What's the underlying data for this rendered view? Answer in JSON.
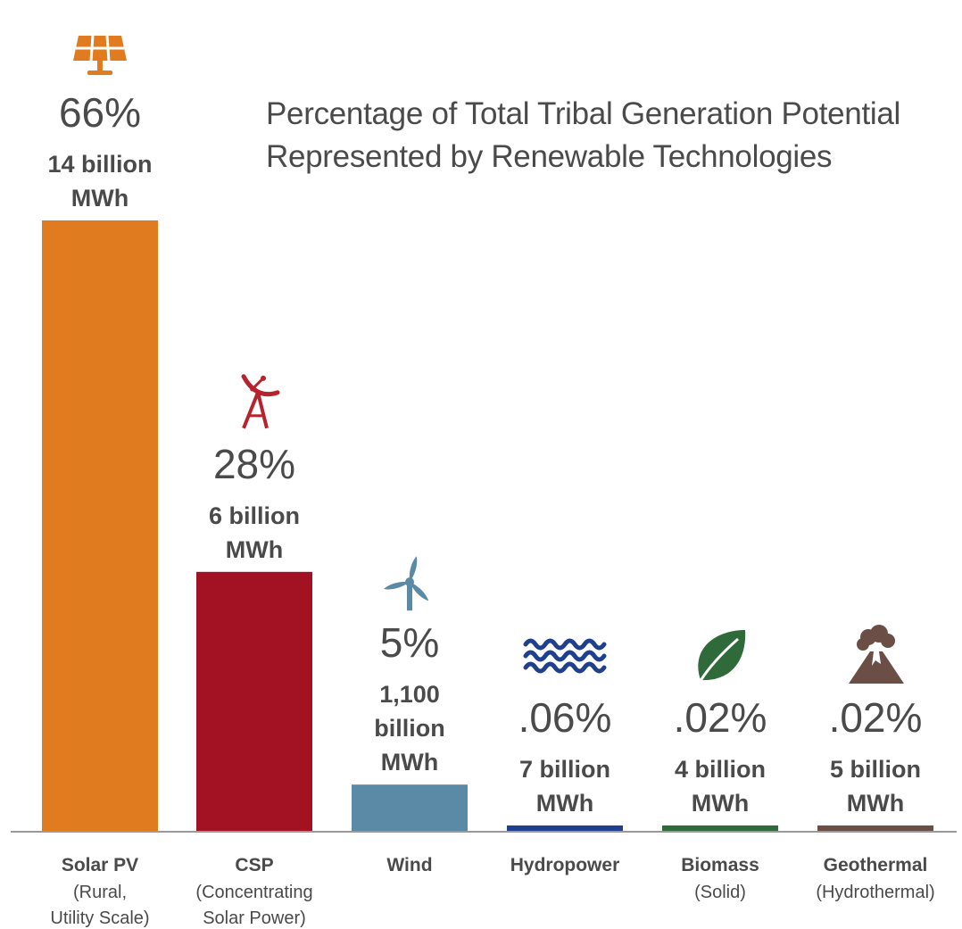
{
  "chart_data": {
    "type": "bar",
    "title": "Percentage of Total Tribal Generation Potential",
    "subtitle": "Represented by Renewable Technologies",
    "xlabel": "",
    "ylabel": "",
    "ylim": [
      0,
      66
    ],
    "grid": false,
    "legend": "none",
    "categories": [
      {
        "name": "Solar PV",
        "sub": [
          "(Rural,",
          "Utility Scale)"
        ],
        "percent": "66%",
        "mwh": [
          "14 billion",
          "MWh"
        ],
        "value": 66,
        "color": "#e07b1f",
        "icon": "solar-panel-icon"
      },
      {
        "name": "CSP",
        "sub": [
          "(Concentrating",
          "Solar Power)"
        ],
        "percent": "28%",
        "mwh": [
          "6 billion",
          "MWh"
        ],
        "value": 28,
        "color": "#a31222",
        "icon": "dish-concentrator-icon"
      },
      {
        "name": "Wind",
        "sub": [],
        "percent": "5%",
        "mwh": [
          "1,100",
          "billion",
          "MWh"
        ],
        "value": 5,
        "color": "#5b8aa6",
        "icon": "wind-turbine-icon"
      },
      {
        "name": "Hydropower",
        "sub": [],
        "percent": ".06%",
        "mwh": [
          "7 billion",
          "MWh"
        ],
        "value": 0.06,
        "color": "#1f3f8f",
        "icon": "water-waves-icon"
      },
      {
        "name": "Biomass",
        "sub": [
          "(Solid)"
        ],
        "percent": ".02%",
        "mwh": [
          "4 billion",
          "MWh"
        ],
        "value": 0.02,
        "color": "#2e6a3a",
        "icon": "leaf-icon"
      },
      {
        "name": "Geothermal",
        "sub": [
          "(Hydrothermal)"
        ],
        "percent": ".02%",
        "mwh": [
          "5 billion",
          "MWh"
        ],
        "value": 0.02,
        "color": "#6b4f46",
        "icon": "volcano-icon"
      }
    ]
  }
}
